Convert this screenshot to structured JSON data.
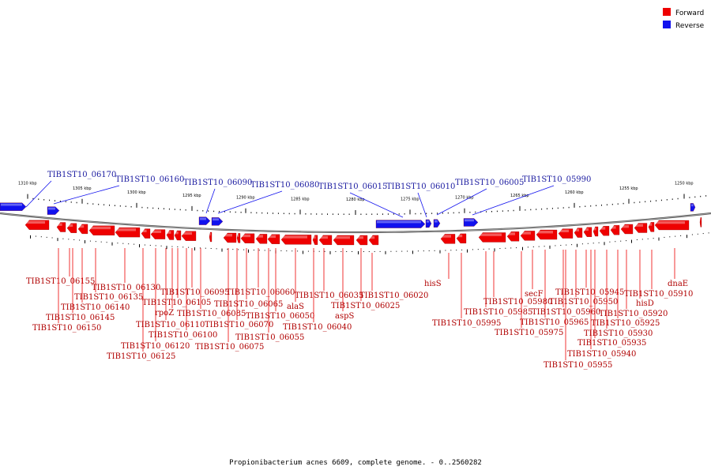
{
  "legend": [
    {
      "label": "Forward",
      "color": "#ee0000"
    },
    {
      "label": "Reverse",
      "color": "#1111ee"
    }
  ],
  "caption": "Propionibacterium acnes 6609, complete genome. - 0..2560282",
  "colors": {
    "forward": "#ee0000",
    "reverse": "#1111ee",
    "backbone": "#888888"
  },
  "genome_view": {
    "start_kbp": 1312,
    "end_kbp": 1247,
    "scale_labels": [
      "1310 kbp",
      "1305 kbp",
      "1300 kbp",
      "1295 kbp",
      "1290 kbp",
      "1285 kbp",
      "1280 kbp",
      "1275 kbp",
      "1270 kbp",
      "1265 kbp",
      "1260 kbp",
      "1255 kbp",
      "1250 kbp"
    ]
  },
  "reverse_labels": [
    "TIB1ST10_06170",
    "TIB1ST10_06160",
    "TIB1ST10_06090",
    "TIB1ST10_06080",
    "TIB1ST10_06015",
    "TIB1ST10_06010",
    "TIB1ST10_06005",
    "TIB1ST10_05990"
  ],
  "forward_labels": [
    "TIB1ST10_06155",
    "TIB1ST10_06150",
    "TIB1ST10_06145",
    "TIB1ST10_06140",
    "TIB1ST10_06135",
    "TIB1ST10_06130",
    "TIB1ST10_06125",
    "TIB1ST10_06120",
    "TIB1ST10_06110",
    "rpoZ",
    "TIB1ST10_06105",
    "TIB1ST10_06100",
    "TIB1ST10_06095",
    "TIB1ST10_06085",
    "TIB1ST10_06075",
    "TIB1ST10_06070",
    "TIB1ST10_06065",
    "TIB1ST10_06060",
    "TIB1ST10_06055",
    "TIB1ST10_06050",
    "alaS",
    "TIB1ST10_06040",
    "TIB1ST10_06035",
    "aspS",
    "TIB1ST10_06025",
    "TIB1ST10_06020",
    "hisS",
    "TIB1ST10_05995",
    "TIB1ST10_05985",
    "TIB1ST10_05980",
    "TIB1ST10_05975",
    "secF",
    "TIB1ST10_05965",
    "TIB1ST10_05960",
    "TIB1ST10_05955",
    "TIB1ST10_05950",
    "TIB1ST10_05945",
    "TIB1ST10_05940",
    "TIB1ST10_05935",
    "TIB1ST10_05930",
    "TIB1ST10_05925",
    "TIB1ST10_05920",
    "hisD",
    "TIB1ST10_05910",
    "dnaE"
  ]
}
